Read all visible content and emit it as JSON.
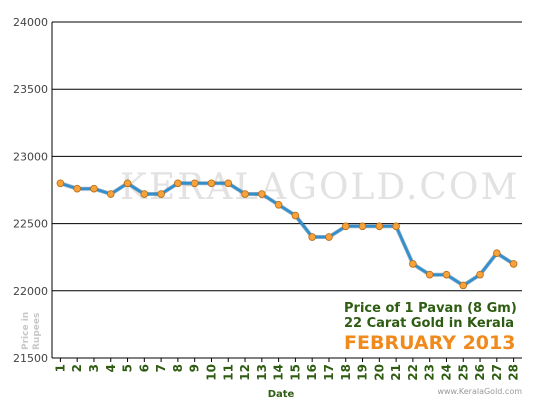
{
  "chart_data": {
    "type": "line",
    "title_lines": [
      "Price of 1 Pavan (8 Gm)",
      "22 Carat Gold in Kerala"
    ],
    "subtitle": "FEBRUARY 2013",
    "xlabel": "Date",
    "ylabel": "Price in Rupees",
    "x": [
      1,
      2,
      3,
      4,
      5,
      6,
      7,
      8,
      9,
      10,
      11,
      12,
      13,
      14,
      15,
      16,
      17,
      18,
      19,
      20,
      21,
      22,
      23,
      24,
      25,
      26,
      27,
      28
    ],
    "values": [
      22800,
      22760,
      22760,
      22720,
      22800,
      22720,
      22720,
      22800,
      22800,
      22800,
      22800,
      22720,
      22720,
      22640,
      22560,
      22400,
      22400,
      22480,
      22480,
      22480,
      22480,
      22200,
      22120,
      22120,
      22040,
      22120,
      22280,
      22200
    ],
    "ylim": [
      21500,
      24000
    ],
    "yticks": [
      "21500",
      "22000",
      "22500",
      "23000",
      "23500",
      "24000"
    ],
    "grid": true,
    "line_color": "#2f8fcf",
    "marker_color": "#f7a23a"
  },
  "watermark": "KERALAGOLD.COM",
  "credit": "www.KeralaGold.com"
}
